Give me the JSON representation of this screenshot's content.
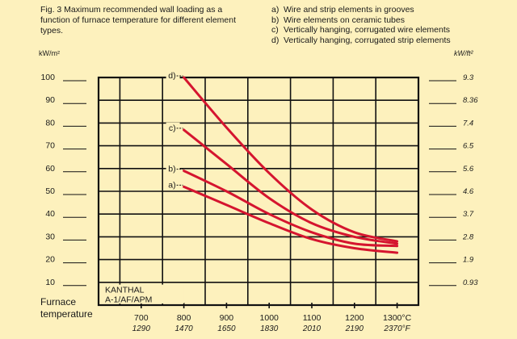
{
  "caption": "Fig. 3 Maximum recommended wall loading as a function of furnace temperature for different element types.",
  "legend": [
    {
      "key": "a)",
      "text": "Wire and strip elements in grooves"
    },
    {
      "key": "b)",
      "text": "Wire elements on ceramic tubes"
    },
    {
      "key": "c)",
      "text": "Vertically hanging, corrugated wire elements"
    },
    {
      "key": "d)",
      "text": "Vertically hanging, corrugated strip elements"
    }
  ],
  "colors": {
    "curve": "#d5152f",
    "frame": "#111111",
    "background": "#fdf1bd"
  },
  "chart_data": {
    "type": "line",
    "title": "Fig. 3 Maximum recommended wall loading as a function of furnace temperature for different element types.",
    "ylabel": "kW/m²",
    "ylabel_secondary": "kW/ft²",
    "xlabel": "Furnace temperature",
    "xlim": [
      600,
      1350
    ],
    "ylim": [
      0,
      100
    ],
    "grid": true,
    "y_ticks": [
      {
        "v": 100,
        "l": "100",
        "r": "9.3"
      },
      {
        "v": 90,
        "l": "90",
        "r": "8.36"
      },
      {
        "v": 80,
        "l": "80",
        "r": "7.4"
      },
      {
        "v": 70,
        "l": "70",
        "r": "6.5"
      },
      {
        "v": 60,
        "l": "60",
        "r": "5.6"
      },
      {
        "v": 50,
        "l": "50",
        "r": "4.6"
      },
      {
        "v": 40,
        "l": "40",
        "r": "3.7"
      },
      {
        "v": 30,
        "l": "30",
        "r": "2.8"
      },
      {
        "v": 20,
        "l": "20",
        "r": "1.9"
      },
      {
        "v": 10,
        "l": "10",
        "r": "0.93"
      }
    ],
    "x_ticks": [
      {
        "v": 700,
        "c": "700",
        "f": "1290"
      },
      {
        "v": 800,
        "c": "800",
        "f": "1470"
      },
      {
        "v": 900,
        "c": "900",
        "f": "1650"
      },
      {
        "v": 1000,
        "c": "1000",
        "f": "1830"
      },
      {
        "v": 1100,
        "c": "1100",
        "f": "2010"
      },
      {
        "v": 1200,
        "c": "1200",
        "f": "2190"
      },
      {
        "v": 1300,
        "c": "1300°C",
        "f": "2370°F"
      }
    ],
    "series": [
      {
        "name": "a)",
        "x": [
          800,
          900,
          1000,
          1100,
          1200,
          1300
        ],
        "y": [
          52,
          44,
          36,
          29,
          25,
          23
        ]
      },
      {
        "name": "b)",
        "x": [
          800,
          900,
          1000,
          1100,
          1200,
          1300
        ],
        "y": [
          59,
          50,
          40,
          32,
          27,
          26
        ]
      },
      {
        "name": "c)",
        "x": [
          800,
          900,
          1000,
          1100,
          1200,
          1300
        ],
        "y": [
          77,
          62,
          47,
          36,
          30,
          27
        ]
      },
      {
        "name": "d)",
        "x": [
          800,
          900,
          1000,
          1100,
          1200,
          1300
        ],
        "y": [
          100,
          78,
          58,
          42,
          32,
          28
        ]
      }
    ],
    "annotation": [
      "KANTHAL",
      "A-1/AF/APM"
    ]
  }
}
